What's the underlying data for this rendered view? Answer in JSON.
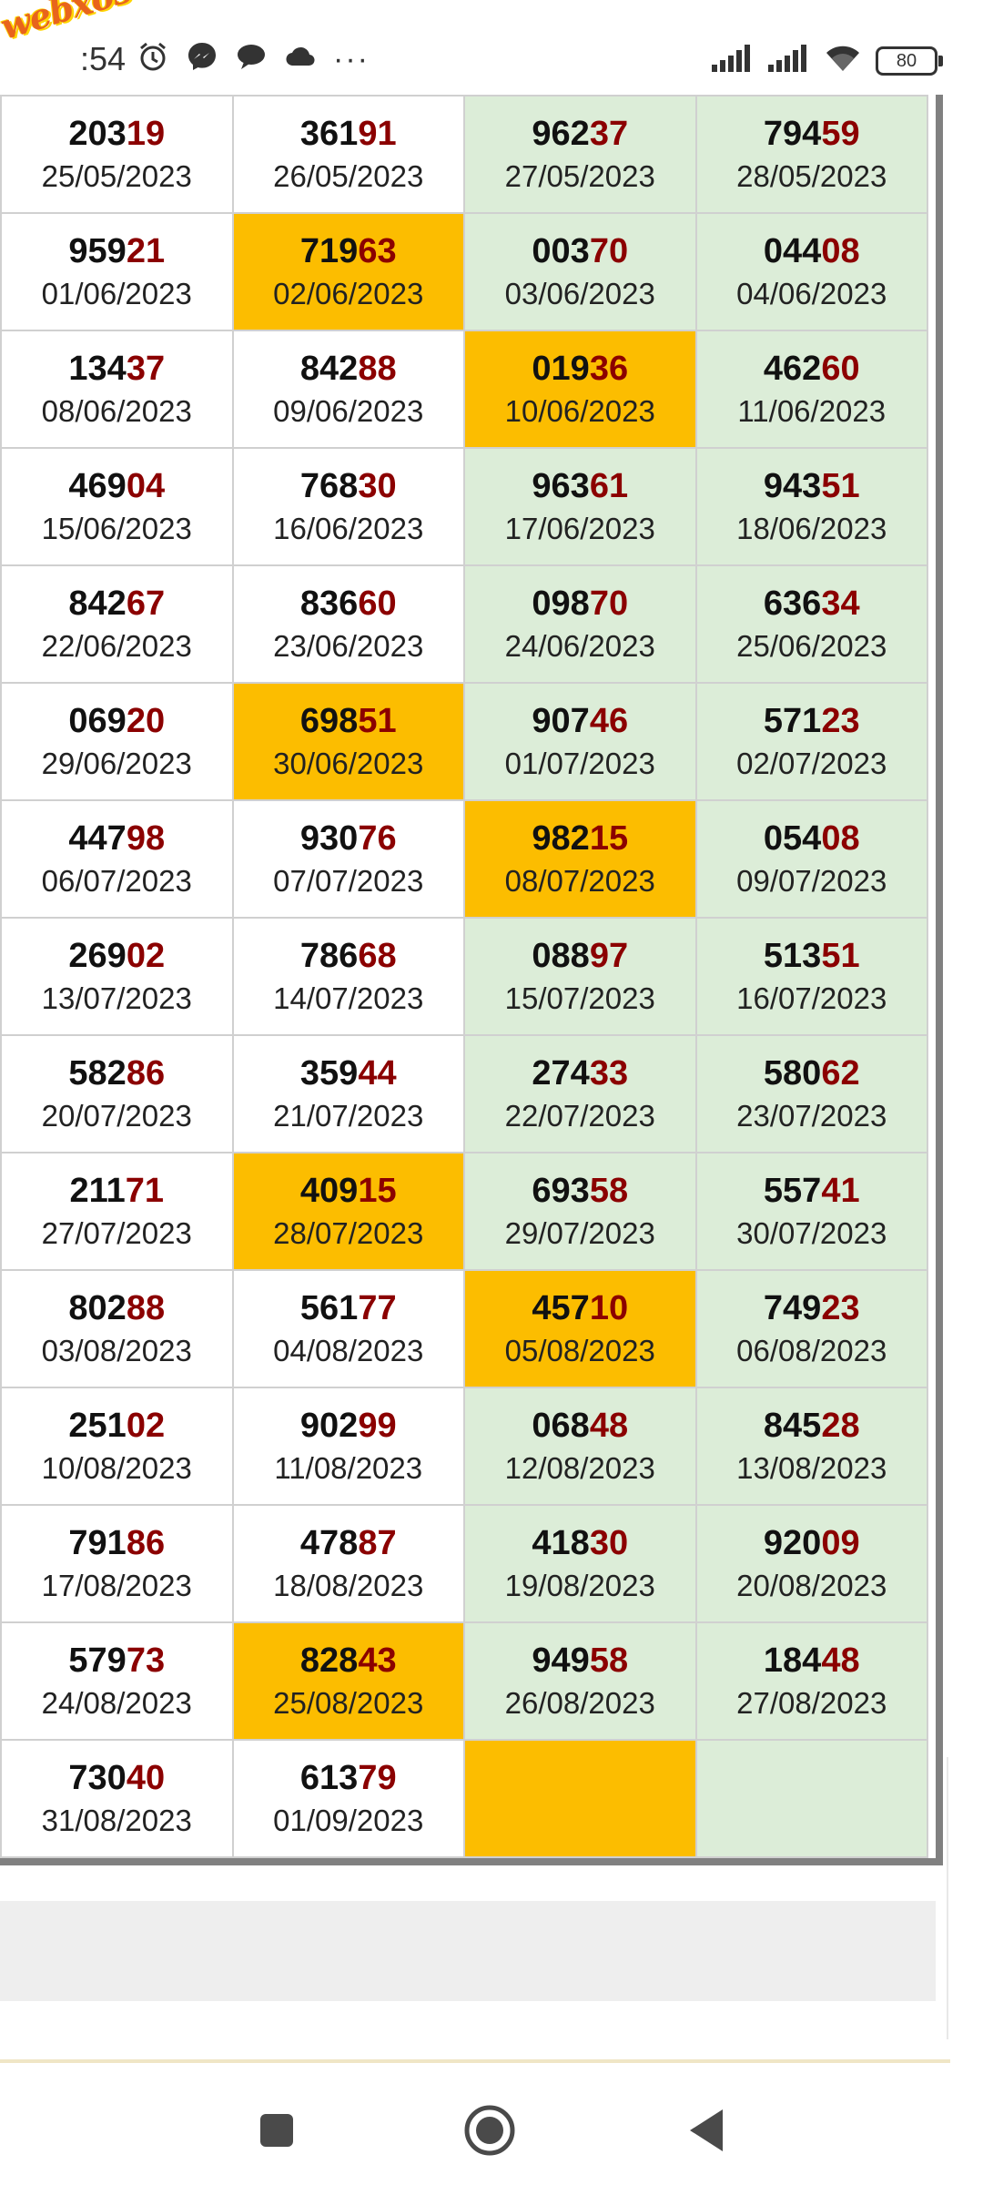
{
  "status_bar": {
    "watermark": "webxoso.net",
    "time": ":54",
    "battery": "80",
    "icons": [
      "alarm-icon",
      "messenger-icon",
      "chat-icon",
      "cloud-icon",
      "more-icon",
      "signal-icon",
      "signal-icon",
      "wifi-icon",
      "battery-icon"
    ]
  },
  "table": {
    "rows": [
      [
        {
          "head": "203",
          "tail": "19",
          "date": "25/05/2023",
          "bg": "white"
        },
        {
          "head": "361",
          "tail": "91",
          "date": "26/05/2023",
          "bg": "white"
        },
        {
          "head": "962",
          "tail": "37",
          "date": "27/05/2023",
          "bg": "green"
        },
        {
          "head": "794",
          "tail": "59",
          "date": "28/05/2023",
          "bg": "green"
        }
      ],
      [
        {
          "head": "959",
          "tail": "21",
          "date": "01/06/2023",
          "bg": "white"
        },
        {
          "head": "719",
          "tail": "63",
          "date": "02/06/2023",
          "bg": "orange"
        },
        {
          "head": "003",
          "tail": "70",
          "date": "03/06/2023",
          "bg": "green"
        },
        {
          "head": "044",
          "tail": "08",
          "date": "04/06/2023",
          "bg": "green"
        }
      ],
      [
        {
          "head": "134",
          "tail": "37",
          "date": "08/06/2023",
          "bg": "white"
        },
        {
          "head": "842",
          "tail": "88",
          "date": "09/06/2023",
          "bg": "white"
        },
        {
          "head": "019",
          "tail": "36",
          "date": "10/06/2023",
          "bg": "orange"
        },
        {
          "head": "462",
          "tail": "60",
          "date": "11/06/2023",
          "bg": "green"
        }
      ],
      [
        {
          "head": "469",
          "tail": "04",
          "date": "15/06/2023",
          "bg": "white"
        },
        {
          "head": "768",
          "tail": "30",
          "date": "16/06/2023",
          "bg": "white"
        },
        {
          "head": "963",
          "tail": "61",
          "date": "17/06/2023",
          "bg": "green"
        },
        {
          "head": "943",
          "tail": "51",
          "date": "18/06/2023",
          "bg": "green"
        }
      ],
      [
        {
          "head": "842",
          "tail": "67",
          "date": "22/06/2023",
          "bg": "white"
        },
        {
          "head": "836",
          "tail": "60",
          "date": "23/06/2023",
          "bg": "white"
        },
        {
          "head": "098",
          "tail": "70",
          "date": "24/06/2023",
          "bg": "green"
        },
        {
          "head": "636",
          "tail": "34",
          "date": "25/06/2023",
          "bg": "green"
        }
      ],
      [
        {
          "head": "069",
          "tail": "20",
          "date": "29/06/2023",
          "bg": "white"
        },
        {
          "head": "698",
          "tail": "51",
          "date": "30/06/2023",
          "bg": "orange"
        },
        {
          "head": "907",
          "tail": "46",
          "date": "01/07/2023",
          "bg": "green"
        },
        {
          "head": "571",
          "tail": "23",
          "date": "02/07/2023",
          "bg": "green"
        }
      ],
      [
        {
          "head": "447",
          "tail": "98",
          "date": "06/07/2023",
          "bg": "white"
        },
        {
          "head": "930",
          "tail": "76",
          "date": "07/07/2023",
          "bg": "white"
        },
        {
          "head": "982",
          "tail": "15",
          "date": "08/07/2023",
          "bg": "orange"
        },
        {
          "head": "054",
          "tail": "08",
          "date": "09/07/2023",
          "bg": "green"
        }
      ],
      [
        {
          "head": "269",
          "tail": "02",
          "date": "13/07/2023",
          "bg": "white"
        },
        {
          "head": "786",
          "tail": "68",
          "date": "14/07/2023",
          "bg": "white"
        },
        {
          "head": "088",
          "tail": "97",
          "date": "15/07/2023",
          "bg": "green"
        },
        {
          "head": "513",
          "tail": "51",
          "date": "16/07/2023",
          "bg": "green"
        }
      ],
      [
        {
          "head": "582",
          "tail": "86",
          "date": "20/07/2023",
          "bg": "white"
        },
        {
          "head": "359",
          "tail": "44",
          "date": "21/07/2023",
          "bg": "white"
        },
        {
          "head": "274",
          "tail": "33",
          "date": "22/07/2023",
          "bg": "green"
        },
        {
          "head": "580",
          "tail": "62",
          "date": "23/07/2023",
          "bg": "green"
        }
      ],
      [
        {
          "head": "211",
          "tail": "71",
          "date": "27/07/2023",
          "bg": "white"
        },
        {
          "head": "409",
          "tail": "15",
          "date": "28/07/2023",
          "bg": "orange"
        },
        {
          "head": "693",
          "tail": "58",
          "date": "29/07/2023",
          "bg": "green"
        },
        {
          "head": "557",
          "tail": "41",
          "date": "30/07/2023",
          "bg": "green"
        }
      ],
      [
        {
          "head": "802",
          "tail": "88",
          "date": "03/08/2023",
          "bg": "white"
        },
        {
          "head": "561",
          "tail": "77",
          "date": "04/08/2023",
          "bg": "white"
        },
        {
          "head": "457",
          "tail": "10",
          "date": "05/08/2023",
          "bg": "orange"
        },
        {
          "head": "749",
          "tail": "23",
          "date": "06/08/2023",
          "bg": "green"
        }
      ],
      [
        {
          "head": "251",
          "tail": "02",
          "date": "10/08/2023",
          "bg": "white"
        },
        {
          "head": "902",
          "tail": "99",
          "date": "11/08/2023",
          "bg": "white"
        },
        {
          "head": "068",
          "tail": "48",
          "date": "12/08/2023",
          "bg": "green"
        },
        {
          "head": "845",
          "tail": "28",
          "date": "13/08/2023",
          "bg": "green"
        }
      ],
      [
        {
          "head": "791",
          "tail": "86",
          "date": "17/08/2023",
          "bg": "white"
        },
        {
          "head": "478",
          "tail": "87",
          "date": "18/08/2023",
          "bg": "white"
        },
        {
          "head": "418",
          "tail": "30",
          "date": "19/08/2023",
          "bg": "green"
        },
        {
          "head": "920",
          "tail": "09",
          "date": "20/08/2023",
          "bg": "green"
        }
      ],
      [
        {
          "head": "579",
          "tail": "73",
          "date": "24/08/2023",
          "bg": "white"
        },
        {
          "head": "828",
          "tail": "43",
          "date": "25/08/2023",
          "bg": "orange"
        },
        {
          "head": "949",
          "tail": "58",
          "date": "26/08/2023",
          "bg": "green"
        },
        {
          "head": "184",
          "tail": "48",
          "date": "27/08/2023",
          "bg": "green"
        }
      ],
      [
        {
          "head": "730",
          "tail": "40",
          "date": "31/08/2023",
          "bg": "white"
        },
        {
          "head": "613",
          "tail": "79",
          "date": "01/09/2023",
          "bg": "white"
        },
        {
          "head": "",
          "tail": "",
          "date": "",
          "bg": "orange"
        },
        {
          "head": "",
          "tail": "",
          "date": "",
          "bg": "green"
        }
      ]
    ]
  },
  "nav_bar": {
    "buttons": [
      "recents-button",
      "home-button",
      "back-button"
    ]
  }
}
